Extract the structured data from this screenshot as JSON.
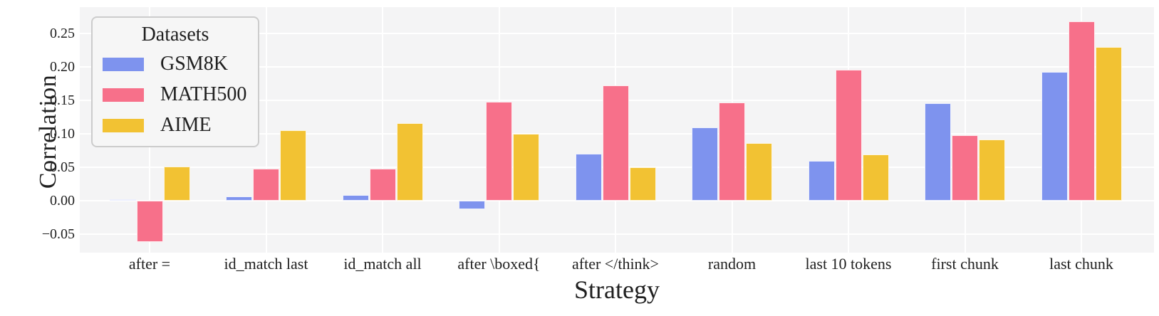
{
  "chart_data": {
    "type": "bar",
    "title": "",
    "xlabel": "Strategy",
    "ylabel": "Correlation",
    "legend_title": "Datasets",
    "legend_position": "upper left",
    "categories": [
      "after =",
      "id_match last",
      "id_match all",
      "after \\boxed{",
      "after </think>",
      "random",
      "last 10 tokens",
      "first chunk",
      "last chunk"
    ],
    "series": [
      {
        "name": "GSM8K",
        "color": "#7E93EE",
        "values": [
          0.002,
          0.006,
          0.009,
          -0.013,
          0.07,
          0.11,
          0.06,
          0.146,
          0.193
        ]
      },
      {
        "name": "MATH500",
        "color": "#F7708A",
        "values": [
          -0.062,
          0.048,
          0.048,
          0.148,
          0.172,
          0.147,
          0.196,
          0.098,
          0.268
        ]
      },
      {
        "name": "AIME",
        "color": "#F2C233",
        "values": [
          0.051,
          0.105,
          0.116,
          0.1,
          0.05,
          0.086,
          0.069,
          0.091,
          0.23
        ]
      }
    ],
    "yticks": [
      0.25,
      0.2,
      0.15,
      0.1,
      0.05,
      0.0,
      -0.05
    ],
    "ylim": [
      -0.078,
      0.289
    ],
    "grid": true,
    "plot_bg": "#F4F4F5",
    "grid_color": "#FFFFFF"
  }
}
